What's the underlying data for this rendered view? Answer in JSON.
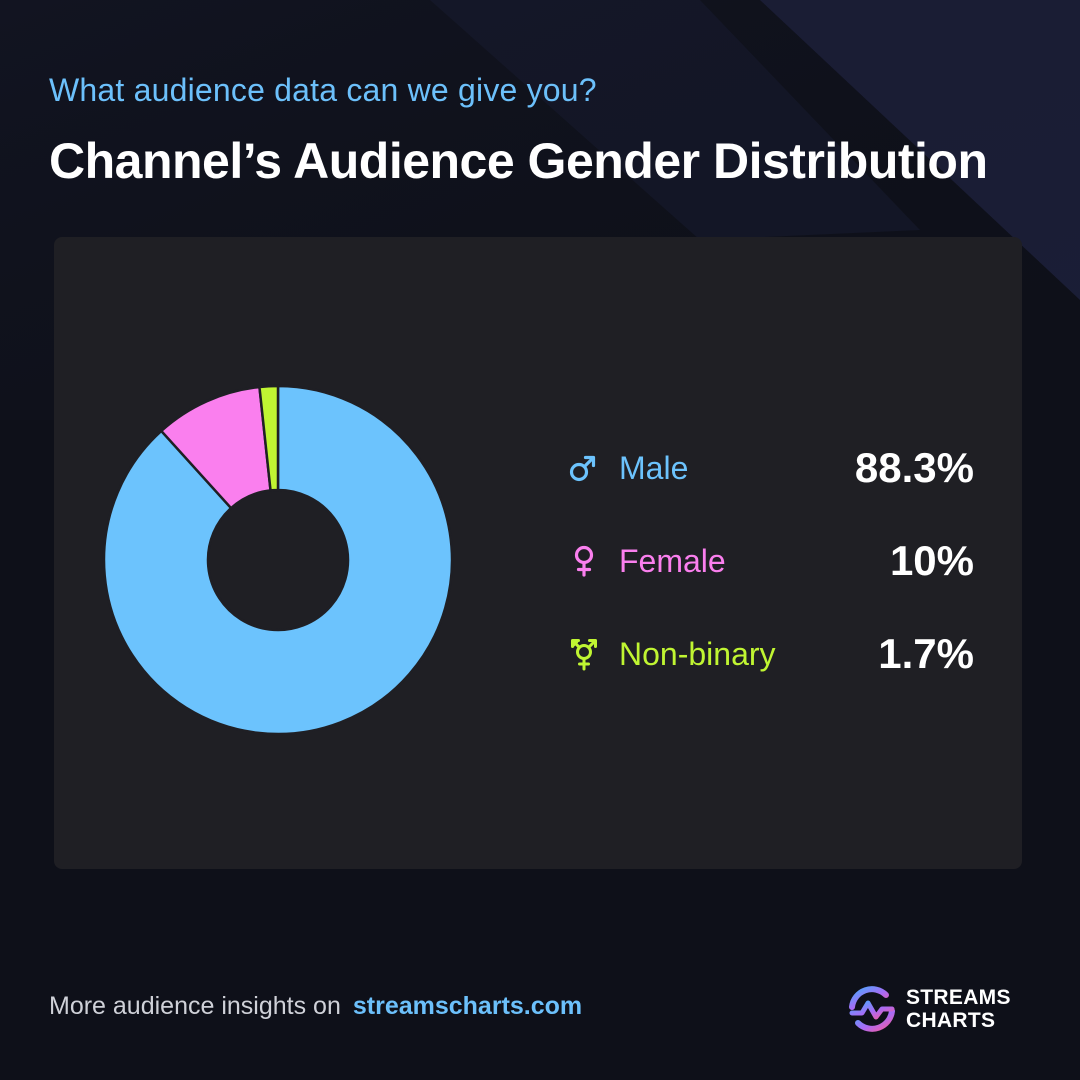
{
  "header": {
    "subtitle": "What audience data can we give you?",
    "title": "Channel’s Audience Gender Distribution"
  },
  "chart_data": {
    "type": "pie",
    "variant": "donut",
    "categories": [
      "Male",
      "Female",
      "Non-binary"
    ],
    "values": [
      88.3,
      10,
      1.7
    ],
    "value_labels": [
      "88.3%",
      "10%",
      "1.7%"
    ],
    "colors": [
      "#6cc3fd",
      "#fa7fee",
      "#c0f532"
    ],
    "icons": [
      "male-icon",
      "female-icon",
      "transgender-icon"
    ],
    "legend_placement": "right"
  },
  "footer": {
    "text": "More audience insights on",
    "link": "streamscharts.com"
  },
  "brand": {
    "line1": "STREAMS",
    "line2": "CHARTS",
    "gradient": [
      "#4aa8ff",
      "#a86bf5",
      "#f65aa0"
    ]
  },
  "colors": {
    "background": "#0e1019",
    "card": "#1f1f24",
    "accent": "#6cc0fb"
  }
}
